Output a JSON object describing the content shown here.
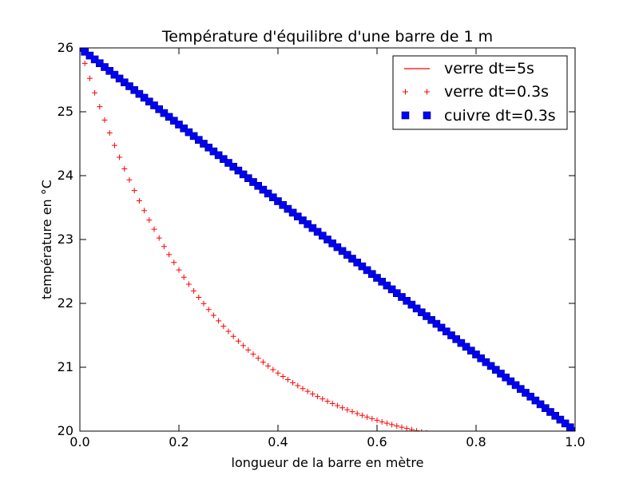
{
  "chart_data": {
    "type": "scatter",
    "title": "Température d'équilibre d'une barre de 1 m",
    "xlabel": "longueur de la barre en mètre",
    "ylabel": "température en °C",
    "xlim": [
      0,
      1.0
    ],
    "ylim": [
      20,
      26
    ],
    "xticks": [
      "0.0",
      "0.2",
      "0.4",
      "0.6",
      "0.8",
      "1.0"
    ],
    "yticks": [
      "20",
      "21",
      "22",
      "23",
      "24",
      "25",
      "26"
    ],
    "grid": false,
    "legend_position": "top-right",
    "series": [
      {
        "name": "verre dt=5s",
        "style": "line",
        "color": "#ff0000",
        "x": [],
        "y": []
      },
      {
        "name": "verre dt=0.3s",
        "style": "plus",
        "color": "#ff0000",
        "x": [
          0.0,
          0.01,
          0.02,
          0.03,
          0.04,
          0.05,
          0.06,
          0.07,
          0.08,
          0.09,
          0.1,
          0.11,
          0.12,
          0.13,
          0.14,
          0.15,
          0.16,
          0.17,
          0.18,
          0.19,
          0.2,
          0.21,
          0.22,
          0.23,
          0.24,
          0.25,
          0.26,
          0.27,
          0.28,
          0.29,
          0.3,
          0.31,
          0.32,
          0.33,
          0.34,
          0.35,
          0.36,
          0.37,
          0.38,
          0.39,
          0.4,
          0.41,
          0.42,
          0.43,
          0.44,
          0.45,
          0.46,
          0.47,
          0.48,
          0.49,
          0.5,
          0.51,
          0.52,
          0.53,
          0.54,
          0.55,
          0.56,
          0.57,
          0.58,
          0.59,
          0.6,
          0.61,
          0.62,
          0.63,
          0.64,
          0.65,
          0.66,
          0.67,
          0.68,
          0.69,
          0.7,
          0.71,
          0.72,
          0.73,
          0.74,
          0.75,
          0.76,
          0.77,
          0.78,
          0.79,
          0.8,
          0.81,
          0.82,
          0.83,
          0.84,
          0.85,
          0.86,
          0.87,
          0.88,
          0.89,
          0.9,
          0.91,
          0.92,
          0.93,
          0.94,
          0.95,
          0.96,
          0.97,
          0.98,
          0.99,
          1.0
        ],
        "y": [
          26.0,
          25.758,
          25.523,
          25.297,
          25.08,
          24.87,
          24.668,
          24.474,
          24.287,
          24.107,
          23.934,
          23.767,
          23.607,
          23.453,
          23.304,
          23.161,
          23.024,
          22.891,
          22.764,
          22.641,
          22.523,
          22.41,
          22.3,
          22.195,
          22.094,
          21.997,
          21.903,
          21.813,
          21.726,
          21.642,
          21.562,
          21.485,
          21.41,
          21.339,
          21.27,
          21.204,
          21.14,
          21.079,
          21.02,
          20.963,
          20.909,
          20.856,
          20.806,
          20.758,
          20.711,
          20.666,
          20.623,
          20.582,
          20.542,
          20.504,
          20.467,
          20.432,
          20.398,
          20.365,
          20.334,
          20.304,
          20.275,
          20.247,
          20.22,
          20.195,
          20.17,
          20.146,
          20.124,
          20.102,
          20.081,
          20.061,
          20.042,
          20.023,
          20.005,
          19.988,
          19.972,
          19.956,
          19.941,
          19.926,
          19.912,
          19.899,
          19.886,
          19.874,
          19.862,
          19.851,
          19.84,
          19.829,
          19.819,
          19.81,
          19.8,
          19.792,
          19.783,
          19.775,
          19.767,
          19.76,
          19.753,
          19.746,
          19.739,
          19.733,
          19.726,
          19.72,
          19.715,
          19.709,
          19.704,
          19.699,
          19.694
        ]
      },
      {
        "name": "cuivre dt=0.3s",
        "style": "square",
        "color": "#0000ff",
        "x": [
          0.0,
          0.01,
          0.02,
          0.03,
          0.04,
          0.05,
          0.06,
          0.07,
          0.08,
          0.09,
          0.1,
          0.11,
          0.12,
          0.13,
          0.14,
          0.15,
          0.16,
          0.17,
          0.18,
          0.19,
          0.2,
          0.21,
          0.22,
          0.23,
          0.24,
          0.25,
          0.26,
          0.27,
          0.28,
          0.29,
          0.3,
          0.31,
          0.32,
          0.33,
          0.34,
          0.35,
          0.36,
          0.37,
          0.38,
          0.39,
          0.4,
          0.41,
          0.42,
          0.43,
          0.44,
          0.45,
          0.46,
          0.47,
          0.48,
          0.49,
          0.5,
          0.51,
          0.52,
          0.53,
          0.54,
          0.55,
          0.56,
          0.57,
          0.58,
          0.59,
          0.6,
          0.61,
          0.62,
          0.63,
          0.64,
          0.65,
          0.66,
          0.67,
          0.68,
          0.69,
          0.7,
          0.71,
          0.72,
          0.73,
          0.74,
          0.75,
          0.76,
          0.77,
          0.78,
          0.79,
          0.8,
          0.81,
          0.82,
          0.83,
          0.84,
          0.85,
          0.86,
          0.87,
          0.88,
          0.89,
          0.9,
          0.91,
          0.92,
          0.93,
          0.94,
          0.95,
          0.96,
          0.97,
          0.98,
          0.99,
          1.0
        ],
        "y": [
          26.0,
          25.94,
          25.88,
          25.82,
          25.76,
          25.7,
          25.64,
          25.58,
          25.52,
          25.46,
          25.4,
          25.34,
          25.28,
          25.22,
          25.16,
          25.1,
          25.04,
          24.98,
          24.92,
          24.86,
          24.8,
          24.74,
          24.68,
          24.62,
          24.56,
          24.5,
          24.44,
          24.38,
          24.32,
          24.26,
          24.2,
          24.14,
          24.08,
          24.02,
          23.96,
          23.9,
          23.84,
          23.78,
          23.72,
          23.66,
          23.6,
          23.54,
          23.48,
          23.42,
          23.36,
          23.3,
          23.24,
          23.18,
          23.12,
          23.06,
          23.0,
          22.94,
          22.88,
          22.82,
          22.76,
          22.7,
          22.64,
          22.58,
          22.52,
          22.46,
          22.4,
          22.34,
          22.28,
          22.22,
          22.16,
          22.1,
          22.04,
          21.98,
          21.92,
          21.86,
          21.8,
          21.74,
          21.68,
          21.62,
          21.56,
          21.5,
          21.44,
          21.38,
          21.32,
          21.26,
          21.2,
          21.14,
          21.08,
          21.02,
          20.96,
          20.9,
          20.84,
          20.78,
          20.72,
          20.66,
          20.6,
          20.54,
          20.48,
          20.42,
          20.36,
          20.3,
          20.24,
          20.18,
          20.12,
          20.06,
          20.0
        ]
      }
    ]
  }
}
